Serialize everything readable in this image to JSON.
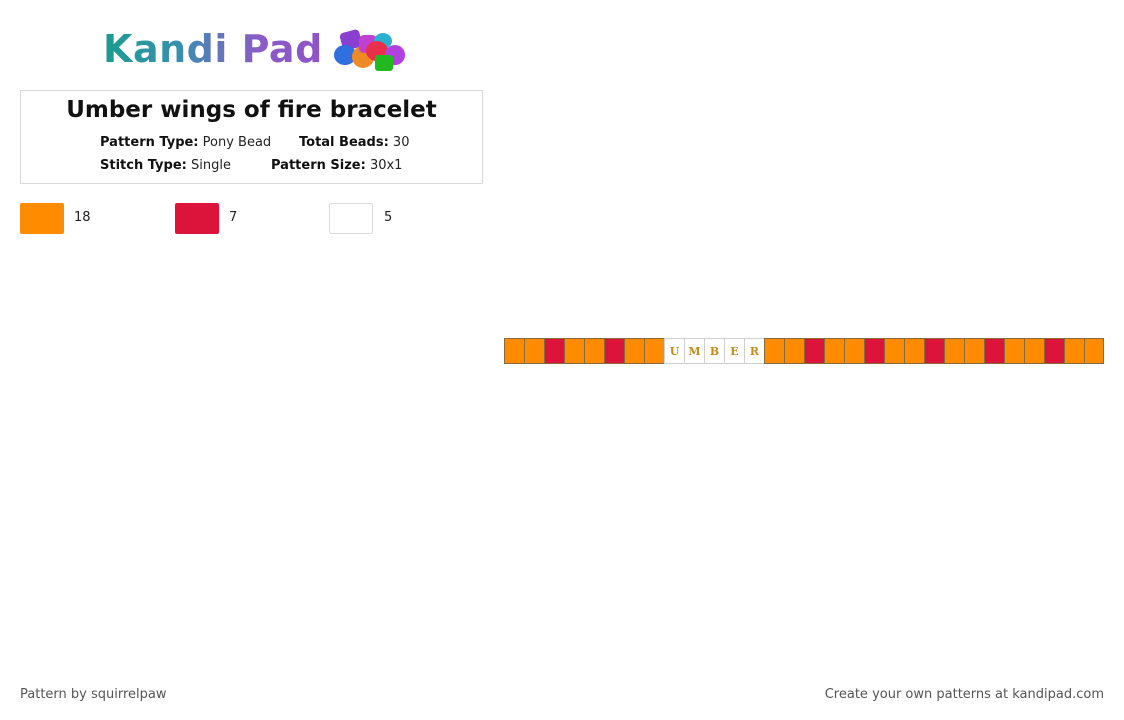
{
  "brand": {
    "name": "Kandi Pad"
  },
  "pattern": {
    "title": "Umber wings of fire bracelet",
    "pattern_type_label": "Pattern Type:",
    "pattern_type": "Pony Bead",
    "total_beads_label": "Total Beads:",
    "total_beads": "30",
    "stitch_type_label": "Stitch Type:",
    "stitch_type": "Single",
    "pattern_size_label": "Pattern Size:",
    "pattern_size": "30x1"
  },
  "colors": {
    "orange": "#ff8c00",
    "red": "#dc143c",
    "white": "#ffffff",
    "letter": "#c48a1a"
  },
  "legend": [
    {
      "color": "#ff8c00",
      "count": "18"
    },
    {
      "color": "#dc143c",
      "count": "7"
    },
    {
      "color": "#ffffff",
      "count": "5"
    }
  ],
  "beads": [
    {
      "c": "orange",
      "t": ""
    },
    {
      "c": "orange",
      "t": ""
    },
    {
      "c": "red",
      "t": ""
    },
    {
      "c": "orange",
      "t": ""
    },
    {
      "c": "orange",
      "t": ""
    },
    {
      "c": "red",
      "t": ""
    },
    {
      "c": "orange",
      "t": ""
    },
    {
      "c": "orange",
      "t": ""
    },
    {
      "c": "white",
      "t": "U"
    },
    {
      "c": "white",
      "t": "M"
    },
    {
      "c": "white",
      "t": "B"
    },
    {
      "c": "white",
      "t": "E"
    },
    {
      "c": "white",
      "t": "R"
    },
    {
      "c": "orange",
      "t": ""
    },
    {
      "c": "orange",
      "t": ""
    },
    {
      "c": "red",
      "t": ""
    },
    {
      "c": "orange",
      "t": ""
    },
    {
      "c": "orange",
      "t": ""
    },
    {
      "c": "red",
      "t": ""
    },
    {
      "c": "orange",
      "t": ""
    },
    {
      "c": "orange",
      "t": ""
    },
    {
      "c": "red",
      "t": ""
    },
    {
      "c": "orange",
      "t": ""
    },
    {
      "c": "orange",
      "t": ""
    },
    {
      "c": "red",
      "t": ""
    },
    {
      "c": "orange",
      "t": ""
    },
    {
      "c": "orange",
      "t": ""
    },
    {
      "c": "red",
      "t": ""
    },
    {
      "c": "orange",
      "t": ""
    },
    {
      "c": "orange",
      "t": ""
    }
  ],
  "footer": {
    "author": "Pattern by squirrelpaw",
    "cta": "Create your own patterns at kandipad.com"
  }
}
